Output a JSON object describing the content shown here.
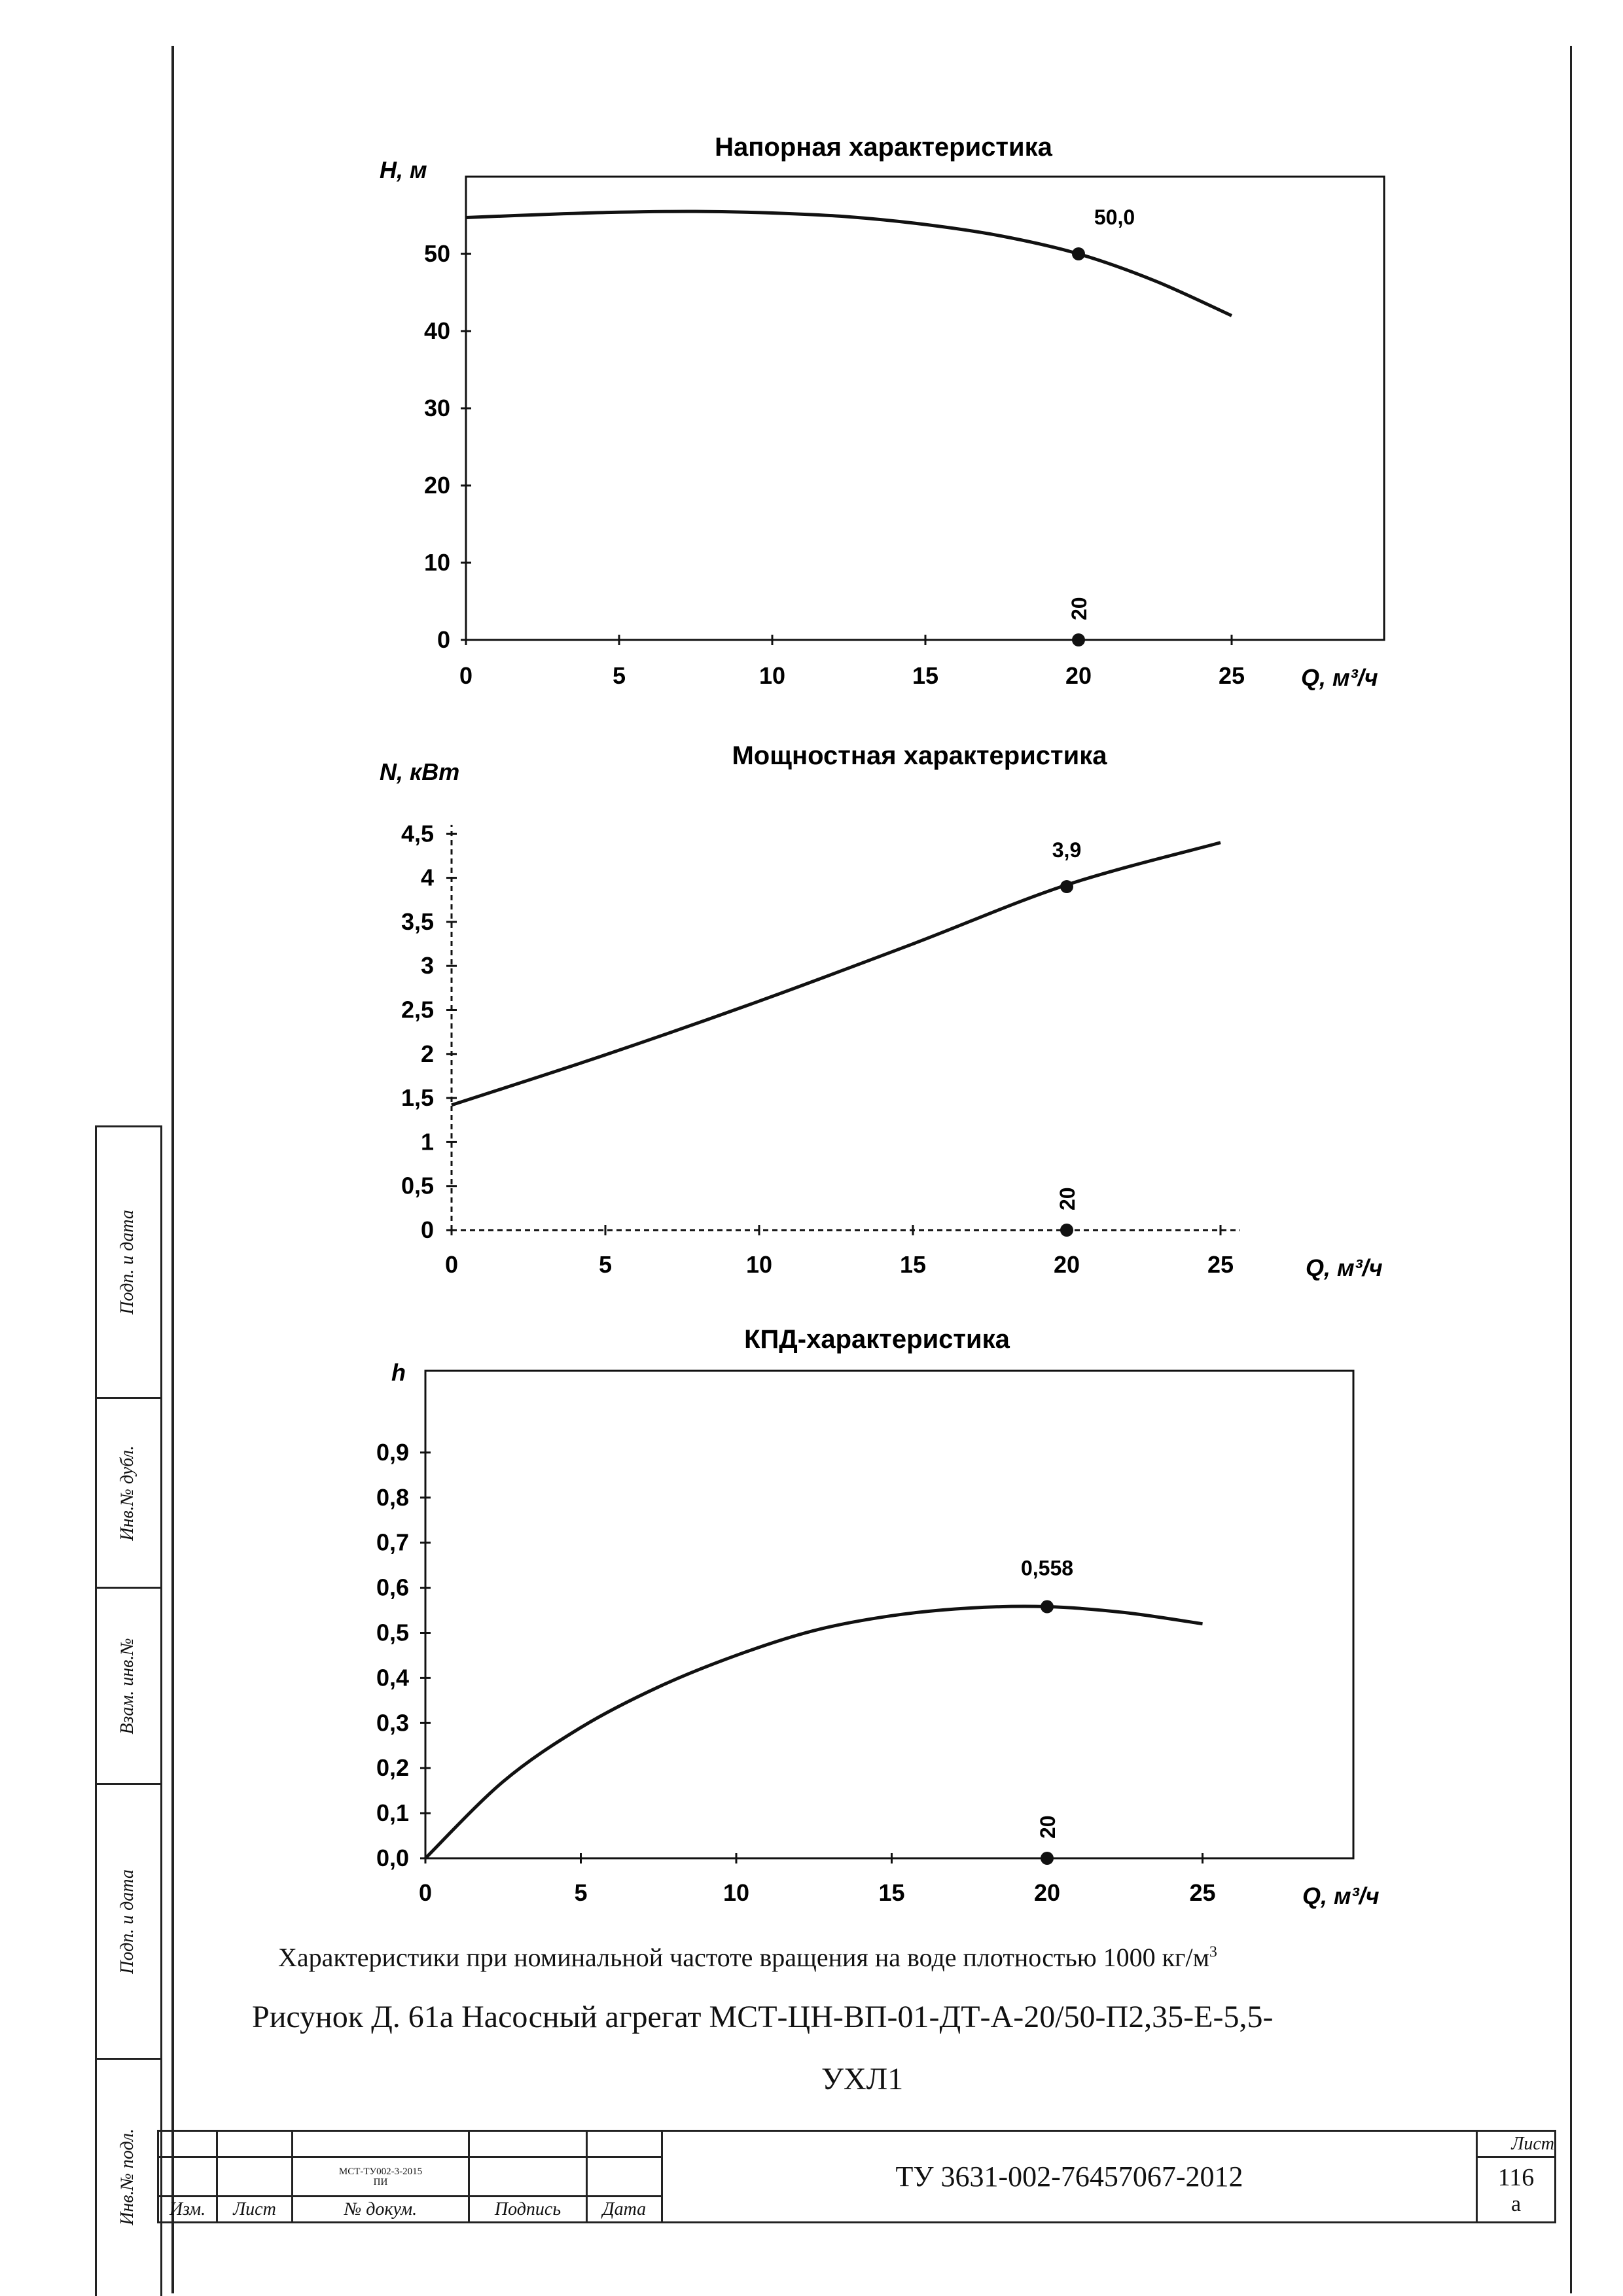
{
  "charts_text": {
    "head": {
      "title": "Напорная характеристика",
      "ylabel": "H, м",
      "xlabel": "Q, м³/ч",
      "point_label": "50,0",
      "x_marker_label": "20"
    },
    "power": {
      "title": "Мощностная характеристика",
      "ylabel": "N, кВт",
      "xlabel": "Q, м³/ч",
      "point_label": "3,9",
      "x_marker_label": "20"
    },
    "eff": {
      "title": "КПД-характеристика",
      "ylabel": "h",
      "xlabel": "Q, м³/ч",
      "point_label": "0,558",
      "x_marker_label": "20"
    }
  },
  "chart_data": [
    {
      "type": "line",
      "title": "Напорная характеристика",
      "xlabel": "Q, м³/ч",
      "ylabel": "H, м",
      "xlim": [
        0,
        30
      ],
      "ylim": [
        0,
        60
      ],
      "x_ticks": [
        "0",
        "5",
        "10",
        "15",
        "20",
        "25"
      ],
      "y_ticks": [
        "0",
        "10",
        "20",
        "30",
        "40",
        "50"
      ],
      "series": [
        {
          "x": [
            0,
            2.5,
            5,
            7.5,
            10,
            12.5,
            15,
            17.5,
            20,
            22.5,
            25
          ],
          "values": [
            54.7,
            55.1,
            55.4,
            55.5,
            55.3,
            54.8,
            53.8,
            52.3,
            50.0,
            46.5,
            42.0
          ]
        }
      ],
      "points": [
        {
          "x": 20,
          "y": 50.0,
          "label": "50,0"
        },
        {
          "x": 20,
          "y": 0,
          "label": "20"
        }
      ]
    },
    {
      "type": "line",
      "title": "Мощностная характеристика",
      "xlabel": "Q, м³/ч",
      "ylabel": "N, кВт",
      "xlim": [
        0,
        25
      ],
      "ylim": [
        0,
        4.6
      ],
      "x_ticks": [
        "0",
        "5",
        "10",
        "15",
        "20",
        "25"
      ],
      "y_ticks": [
        "0",
        "0,5",
        "1",
        "1,5",
        "2",
        "2,5",
        "3",
        "3,5",
        "4",
        "4,5"
      ],
      "series": [
        {
          "x": [
            0,
            5,
            10,
            15,
            20,
            25
          ],
          "values": [
            1.42,
            1.99,
            2.6,
            3.25,
            3.92,
            4.4
          ]
        }
      ],
      "points": [
        {
          "x": 20,
          "y": 3.9,
          "label": "3,9"
        },
        {
          "x": 20,
          "y": 0,
          "label": "20"
        }
      ]
    },
    {
      "type": "line",
      "title": "КПД-характеристика",
      "xlabel": "Q, м³/ч",
      "ylabel": "h",
      "xlim": [
        0,
        30
      ],
      "ylim": [
        0,
        1.0
      ],
      "x_ticks": [
        "0",
        "5",
        "10",
        "15",
        "20",
        "25"
      ],
      "y_ticks": [
        "0,0",
        "0,1",
        "0,2",
        "0,3",
        "0,4",
        "0,5",
        "0,6",
        "0,7",
        "0,8",
        "0,9"
      ],
      "series": [
        {
          "x": [
            0,
            2.5,
            5,
            7.5,
            10,
            12.5,
            15,
            17.5,
            20,
            22.5,
            25
          ],
          "values": [
            0.0,
            0.17,
            0.29,
            0.38,
            0.45,
            0.505,
            0.538,
            0.555,
            0.558,
            0.545,
            0.52
          ]
        }
      ],
      "points": [
        {
          "x": 20,
          "y": 0.558,
          "label": "0,558"
        },
        {
          "x": 20,
          "y": 0,
          "label": "20"
        }
      ]
    }
  ],
  "caption": {
    "line1": "Характеристики при номинальной частоте вращения на воде плотностью 1000 кг/м",
    "line1_sup": "3",
    "line2": "Рисунок Д. 61а Насосный агрегат МСТ-ЦН-ВП-01-ДТ-А-20/50-П2,35-Е-5,5-",
    "line3": "УХЛ1"
  },
  "side_labels": [
    "Подп. и дата",
    "Инв.№ дубл.",
    "Взам. инв.№",
    "Подп. и дата",
    "Инв.№ подл."
  ],
  "stamp": {
    "doc_small_1": "МСТ-ТУ002-3-2015",
    "doc_small_2": "ПИ",
    "col_izm": "Изм.",
    "col_list": "Лист",
    "col_doc": "№ докум.",
    "col_sign": "Подпись",
    "col_date": "Дата",
    "document": "ТУ 3631-002-76457067-2012",
    "sheet_label": "Лист",
    "sheet_num": "116",
    "sheet_suffix": "а"
  }
}
